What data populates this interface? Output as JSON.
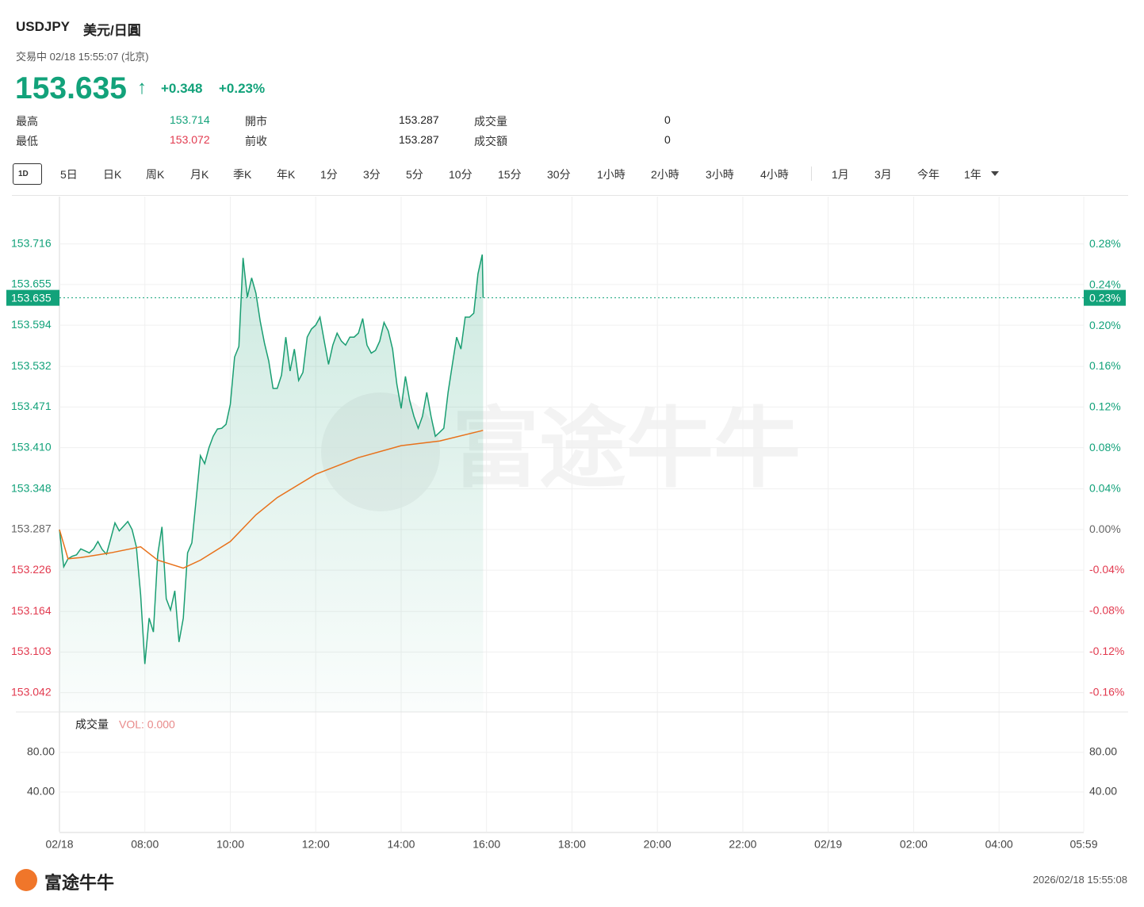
{
  "quote": {
    "symbol": "USDJPY",
    "name": "美元/日圓",
    "status": "交易中 02/18 15:55:07 (北京)",
    "price": "153.635",
    "arrow": "↑",
    "change": "+0.348",
    "change_pct": "+0.23%",
    "stats": [
      [
        {
          "label": "最高",
          "value": 153.714
        },
        {
          "label": "開市",
          "value": 153.287
        },
        {
          "label": "成交量",
          "value": 0
        }
      ],
      [
        {
          "label": "最低",
          "value": 153.072
        },
        {
          "label": "前收",
          "value": 153.287
        },
        {
          "label": "成交額",
          "value": 0
        }
      ]
    ]
  },
  "tabs": [
    "1D",
    "5日",
    "日K",
    "周K",
    "月K",
    "季K",
    "年K",
    "1分",
    "3分",
    "5分",
    "10分",
    "15分",
    "30分",
    "1小時",
    "2小時",
    "3小時",
    "4小時",
    "1月",
    "3月",
    "今年",
    "1年"
  ],
  "chart_data": {
    "type": "line",
    "watermark": "富途牛牛",
    "xlim": [
      0,
      23.983
    ],
    "xticks": [
      {
        "value": 0,
        "label": "02/18"
      },
      {
        "value": 2,
        "label": "08:00"
      },
      {
        "value": 4,
        "label": "10:00"
      },
      {
        "value": 6,
        "label": "12:00"
      },
      {
        "value": 8,
        "label": "14:00"
      },
      {
        "value": 10,
        "label": "16:00"
      },
      {
        "value": 12,
        "label": "18:00"
      },
      {
        "value": 14,
        "label": "20:00"
      },
      {
        "value": 16,
        "label": "22:00"
      },
      {
        "value": 18,
        "label": "02/19"
      },
      {
        "value": 20,
        "label": "02:00"
      },
      {
        "value": 22,
        "label": "04:00"
      },
      {
        "value": 23.983,
        "label": "05:59"
      }
    ],
    "ylim": [
      153.013,
      153.787
    ],
    "yticks": [
      153.716,
      153.655,
      153.594,
      153.532,
      153.471,
      {
        "value": 153.41,
        "label": "153.410"
      },
      153.348,
      153.287,
      153.226,
      153.164,
      153.103,
      153.042
    ],
    "y2lim": [
      -0.179,
      0.327
    ],
    "y2ticks": [
      {
        "value": 0.28,
        "label": "0.28%"
      },
      {
        "value": 0.24,
        "label": "0.24%"
      },
      {
        "value": 0.2,
        "label": "0.20%"
      },
      {
        "value": 0.16,
        "label": "0.16%"
      },
      {
        "value": 0.12,
        "label": "0.12%"
      },
      {
        "value": 0.08,
        "label": "0.08%"
      },
      {
        "value": 0.04,
        "label": "0.04%"
      },
      {
        "value": 0,
        "label": "0.00%"
      },
      {
        "value": -0.04,
        "label": "-0.04%"
      },
      {
        "value": -0.08,
        "label": "-0.08%"
      },
      {
        "value": -0.12,
        "label": "-0.12%"
      },
      {
        "value": -0.16,
        "label": "-0.16%"
      }
    ],
    "last": {
      "value": 153.635,
      "label": "153.635",
      "pct_label": "0.23%"
    },
    "grid": true,
    "series": [
      {
        "color": "#1a9e72",
        "fill": true,
        "x": [
          0,
          0.1,
          0.2,
          0.3,
          0.4,
          0.5,
          0.6,
          0.7,
          0.8,
          0.9,
          1,
          1.1,
          1.2,
          1.3,
          1.4,
          1.5,
          1.6,
          1.7,
          1.8,
          1.9,
          2,
          2.1,
          2.2,
          2.3,
          2.4,
          2.5,
          2.6,
          2.7,
          2.8,
          2.9,
          3,
          3.1,
          3.2,
          3.3,
          3.4,
          3.5,
          3.6,
          3.7,
          3.8,
          3.9,
          4,
          4.1,
          4.2,
          4.3,
          4.4,
          4.5,
          4.6,
          4.7,
          4.8,
          4.9,
          5,
          5.1,
          5.2,
          5.3,
          5.4,
          5.5,
          5.6,
          5.7,
          5.8,
          5.9,
          6,
          6.1,
          6.2,
          6.3,
          6.4,
          6.5,
          6.6,
          6.7,
          6.8,
          6.9,
          7,
          7.1,
          7.2,
          7.3,
          7.4,
          7.5,
          7.6,
          7.7,
          7.8,
          7.9,
          8,
          8.1,
          8.2,
          8.3,
          8.4,
          8.5,
          8.6,
          8.7,
          8.8,
          8.9,
          9,
          9.1,
          9.2,
          9.3,
          9.4,
          9.5,
          9.6,
          9.7,
          9.8,
          9.9,
          9.92
        ],
        "values": [
          153.287,
          153.231,
          153.243,
          153.247,
          153.249,
          153.258,
          153.255,
          153.252,
          153.258,
          153.269,
          153.257,
          153.25,
          153.273,
          153.297,
          153.285,
          153.292,
          153.299,
          153.287,
          153.261,
          153.189,
          153.085,
          153.154,
          153.133,
          153.249,
          153.291,
          153.183,
          153.166,
          153.195,
          153.118,
          153.154,
          153.252,
          153.267,
          153.332,
          153.398,
          153.386,
          153.41,
          153.427,
          153.438,
          153.439,
          153.445,
          153.475,
          153.546,
          153.562,
          153.695,
          153.636,
          153.665,
          153.642,
          153.6,
          153.567,
          153.54,
          153.499,
          153.499,
          153.519,
          153.576,
          153.525,
          153.558,
          153.511,
          153.523,
          153.576,
          153.588,
          153.594,
          153.606,
          153.57,
          153.535,
          153.564,
          153.582,
          153.57,
          153.564,
          153.576,
          153.576,
          153.582,
          153.604,
          153.564,
          153.552,
          153.556,
          153.57,
          153.598,
          153.585,
          153.558,
          153.505,
          153.469,
          153.517,
          153.481,
          153.457,
          153.439,
          153.457,
          153.493,
          153.457,
          153.427,
          153.433,
          153.439,
          153.493,
          153.535,
          153.576,
          153.558,
          153.606,
          153.606,
          153.612,
          153.671,
          153.7,
          153.635
        ]
      },
      {
        "color": "#e8711a",
        "fill": false,
        "x": [
          0,
          0.2,
          0.5,
          1.2,
          1.9,
          2.3,
          2.9,
          3.3,
          4,
          4.6,
          5.1,
          6,
          7,
          8,
          8.9,
          9.92
        ],
        "values": [
          153.287,
          153.243,
          153.245,
          153.252,
          153.261,
          153.241,
          153.229,
          153.241,
          153.269,
          153.309,
          153.335,
          153.37,
          153.395,
          153.413,
          153.42,
          153.436
        ]
      }
    ],
    "volume": {
      "label": "成交量",
      "vol_label": "VOL: 0.000",
      "ylim": [
        0,
        120
      ],
      "yticks": [
        {
          "value": 80,
          "label": "80.00"
        },
        {
          "value": 40,
          "label": "40.00"
        }
      ]
    }
  },
  "footer": {
    "logo": "富途牛牛",
    "timestamp": "2026/02/18 15:55:08"
  }
}
